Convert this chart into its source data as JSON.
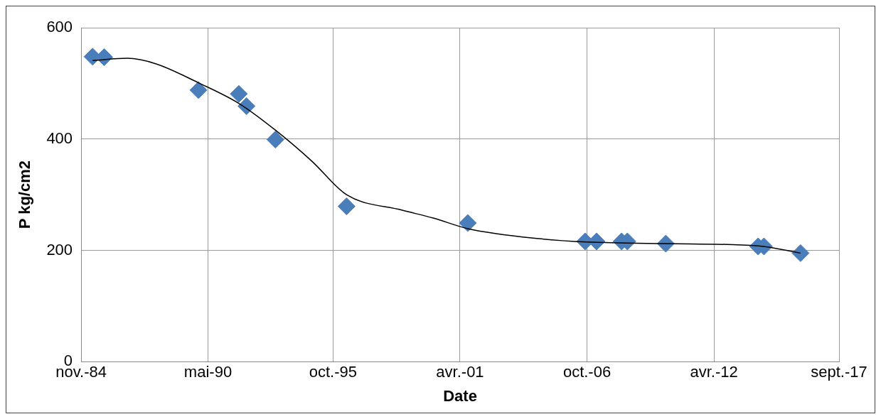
{
  "chart_data": {
    "type": "scatter",
    "xlabel": "Date",
    "ylabel": "P kg/cm2",
    "marker": "diamond",
    "grid": true,
    "legend": false,
    "xlim": [
      "1984-11",
      "2017-09"
    ],
    "xticks": [
      {
        "value": "1984-11",
        "label": "nov.-84"
      },
      {
        "value": "1990-05",
        "label": "mai-90"
      },
      {
        "value": "1995-10",
        "label": "oct.-95"
      },
      {
        "value": "2001-04",
        "label": "avr.-01"
      },
      {
        "value": "2006-10",
        "label": "oct.-06"
      },
      {
        "value": "2012-04",
        "label": "avr.-12"
      },
      {
        "value": "2017-09",
        "label": "sept.-17"
      }
    ],
    "ylim": [
      0,
      600
    ],
    "yticks": [
      0,
      200,
      400,
      600
    ],
    "series": [
      {
        "type": "scatter",
        "color": "#4a7ebb",
        "x": [
          "1985-05",
          "1985-11",
          "1989-12",
          "1991-09",
          "1992-01",
          "1993-04",
          "1996-05",
          "2001-08",
          "2006-09",
          "2007-03",
          "2008-04",
          "2008-07",
          "2010-03",
          "2014-03",
          "2014-06",
          "2016-01"
        ],
        "values": [
          548,
          547,
          488,
          481,
          459,
          399,
          279,
          249,
          216,
          216,
          216,
          216,
          212,
          207,
          207,
          195
        ]
      },
      {
        "type": "line",
        "color": "#000000",
        "marker": "none",
        "x": [
          "1985-05",
          "1986-11",
          "1988-02",
          "1989-12",
          "1991-09",
          "1993-04",
          "1994-11",
          "1996-05",
          "1998-10",
          "2000-02",
          "2001-08",
          "2004-09",
          "2006-10",
          "2010-03",
          "2014-03",
          "2016-01"
        ],
        "values": [
          541,
          545,
          535,
          501,
          464,
          416,
          360,
          300,
          272,
          258,
          239,
          221,
          215,
          212,
          208,
          195
        ]
      }
    ]
  }
}
